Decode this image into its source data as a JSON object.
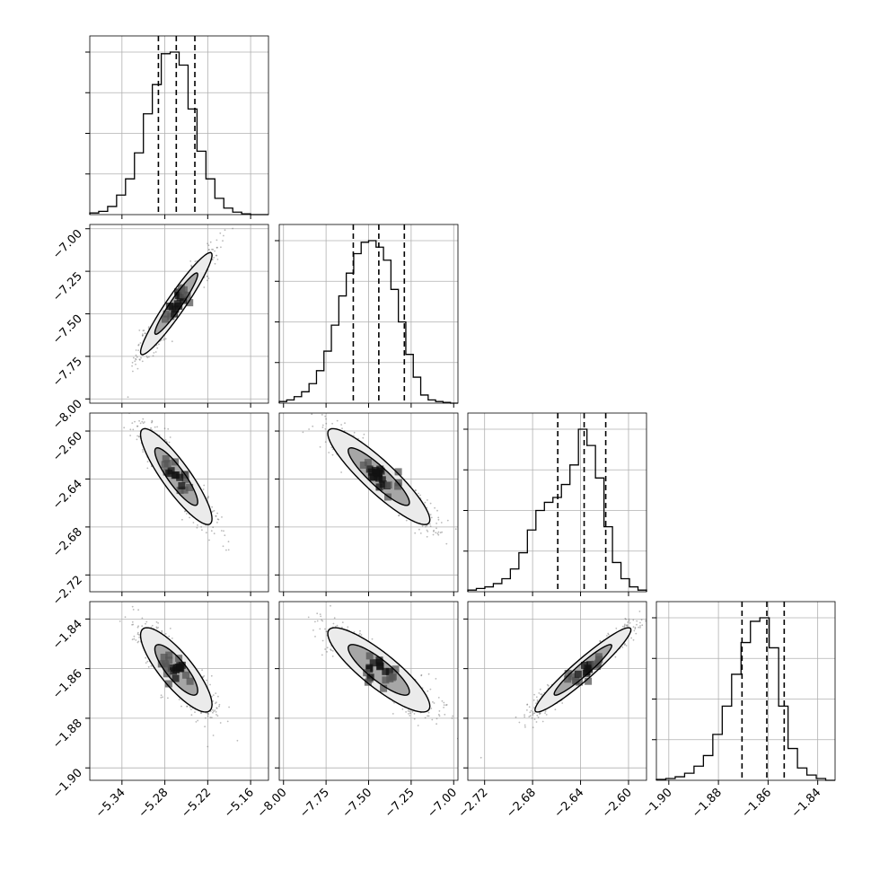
{
  "chart_data": {
    "type": "corner",
    "parameters": [
      {
        "ticks": [
          "-5.34",
          "-5.28",
          "-5.22",
          "-5.16"
        ],
        "tick_values": [
          -5.34,
          -5.28,
          -5.22,
          -5.16
        ],
        "range": [
          -5.385,
          -5.135
        ]
      },
      {
        "ticks": [
          "-8.00",
          "-7.75",
          "-7.50",
          "-7.25",
          "-7.00"
        ],
        "tick_values": [
          -8.0,
          -7.75,
          -7.5,
          -7.25,
          -7.0
        ],
        "range": [
          -8.025,
          -6.975
        ]
      },
      {
        "ticks": [
          "-2.72",
          "-2.68",
          "-2.64",
          "-2.60"
        ],
        "tick_values": [
          -2.72,
          -2.68,
          -2.64,
          -2.6
        ],
        "range": [
          -2.734,
          -2.585
        ]
      },
      {
        "ticks": [
          "-1.90",
          "-1.88",
          "-1.86",
          "-1.84"
        ],
        "tick_values": [
          -1.9,
          -1.88,
          -1.86,
          -1.84
        ],
        "range": [
          -1.905,
          -1.833
        ]
      }
    ],
    "marginals": [
      {
        "quantiles": [
          -5.289,
          -5.264,
          -5.238
        ],
        "counts": [
          1,
          2,
          5,
          12,
          22,
          38,
          62,
          80,
          99,
          100,
          92,
          65,
          39,
          22,
          10,
          4,
          1.5,
          0.5,
          0,
          0
        ]
      },
      {
        "quantiles": [
          -7.59,
          -7.44,
          -7.29
        ],
        "counts": [
          1,
          2,
          4,
          7,
          12,
          20,
          32,
          48,
          66,
          80,
          92,
          99,
          100,
          96,
          88,
          70,
          50,
          30,
          16,
          5,
          2,
          1,
          0.5,
          0
        ]
      },
      {
        "quantiles": [
          -2.659,
          -2.637,
          -2.619
        ],
        "counts": [
          1,
          2,
          3,
          5,
          8,
          14,
          24,
          38,
          50,
          55,
          58,
          66,
          78,
          100,
          90,
          70,
          40,
          18,
          8,
          3,
          1
        ]
      },
      {
        "quantiles": [
          -1.8705,
          -1.8605,
          -1.8535
        ],
        "counts": [
          0.5,
          1,
          2,
          4,
          8,
          14,
          26,
          42,
          60,
          78,
          90,
          92,
          75,
          42,
          18,
          7,
          3,
          1,
          0
        ]
      }
    ],
    "covariance": {
      "mean": [
        -5.264,
        -7.44,
        -2.638,
        -1.8605
      ],
      "sd": [
        0.025,
        0.15,
        0.02,
        0.0085
      ],
      "corr": [
        [
          1.0,
          0.95,
          -0.88,
          -0.82
        ],
        [
          0.95,
          1.0,
          -0.9,
          -0.86
        ],
        [
          -0.88,
          -0.9,
          1.0,
          0.95
        ],
        [
          -0.82,
          -0.86,
          0.95,
          1.0
        ]
      ]
    },
    "grid": true,
    "colors": {
      "lines": "#000000",
      "points": "#666666",
      "grid": "#b0b0b0"
    }
  }
}
